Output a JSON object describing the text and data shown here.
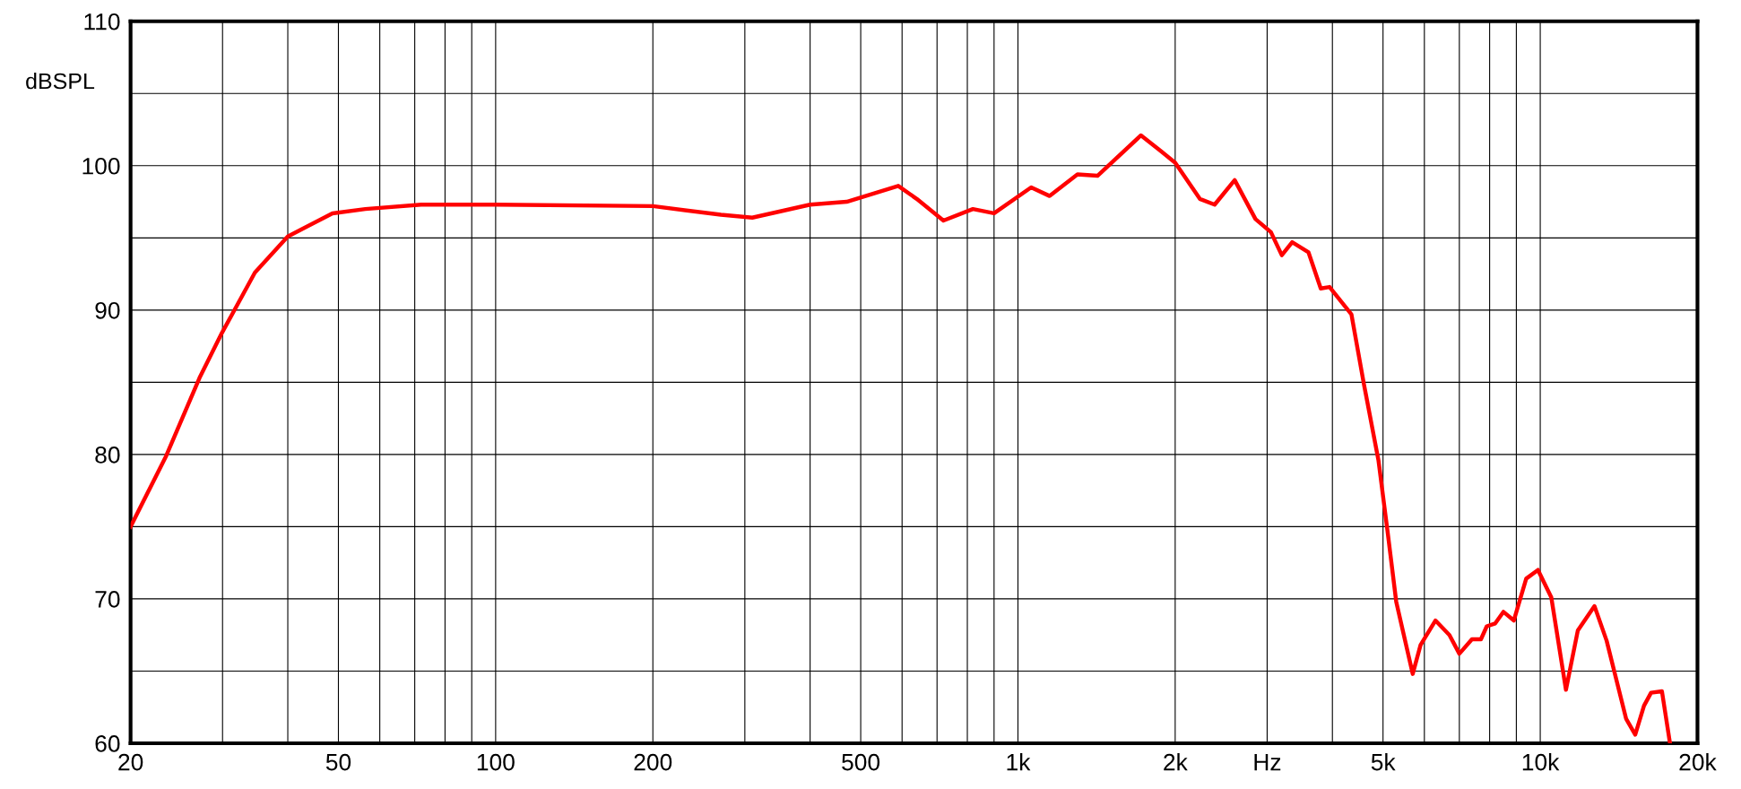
{
  "chart_data": {
    "type": "line",
    "ylabel": "dBSPL",
    "log": "x",
    "grid": true,
    "marker": "none",
    "line_style": "solid",
    "x": [
      20,
      23.4,
      27.1,
      29.9,
      34.6,
      40,
      48.7,
      56.3,
      72,
      100,
      200,
      270,
      310,
      400,
      470,
      590,
      640,
      720,
      820,
      900,
      1060,
      1150,
      1300,
      1420,
      1720,
      1880,
      2000,
      2230,
      2380,
      2600,
      2850,
      3050,
      3200,
      3350,
      3600,
      3800,
      3950,
      4350,
      4600,
      4900,
      5100,
      5300,
      5700,
      5900,
      6300,
      6700,
      7000,
      7400,
      7700,
      7900,
      8200,
      8500,
      8900,
      9400,
      9900,
      10500,
      11200,
      11800,
      12700,
      13400,
      14600,
      15200,
      15800,
      16300,
      17100,
      17700
    ],
    "series": [
      {
        "color": "#ff0000",
        "values": [
          75.0,
          79.9,
          85.3,
          88.4,
          92.6,
          95.1,
          96.7,
          97.0,
          97.3,
          97.3,
          97.2,
          96.6,
          96.4,
          97.3,
          97.5,
          98.6,
          97.7,
          96.2,
          97.0,
          96.7,
          98.5,
          97.9,
          99.4,
          99.3,
          102.1,
          101.0,
          100.2,
          97.7,
          97.3,
          99.0,
          96.3,
          95.4,
          93.8,
          94.7,
          94.0,
          91.5,
          91.6,
          89.7,
          84.8,
          79.6,
          74.7,
          69.8,
          64.8,
          66.8,
          68.5,
          67.5,
          66.2,
          67.2,
          67.2,
          68.1,
          68.3,
          69.1,
          68.5,
          71.4,
          72.0,
          70.1,
          63.7,
          67.8,
          69.5,
          67.1,
          61.7,
          60.6,
          62.6,
          63.5,
          63.6,
          60.1
        ]
      }
    ],
    "xlim": [
      20,
      20000
    ],
    "xticks": [
      20,
      {
        "value": 30,
        "label": null
      },
      {
        "value": 40,
        "label": null
      },
      50,
      {
        "value": 60,
        "label": null
      },
      {
        "value": 70,
        "label": null
      },
      {
        "value": 80,
        "label": null
      },
      {
        "value": 90,
        "label": null
      },
      100,
      200,
      {
        "value": 300,
        "label": null
      },
      {
        "value": 400,
        "label": null
      },
      500,
      {
        "value": 600,
        "label": null
      },
      {
        "value": 700,
        "label": null
      },
      {
        "value": 800,
        "label": null
      },
      {
        "value": 900,
        "label": null
      },
      {
        "value": 1000,
        "label": "1k"
      },
      {
        "value": 2000,
        "label": "2k"
      },
      {
        "value": 3000,
        "label": "Hz"
      },
      {
        "value": 4000,
        "label": null
      },
      {
        "value": 5000,
        "label": "5k"
      },
      {
        "value": 6000,
        "label": null
      },
      {
        "value": 7000,
        "label": null
      },
      {
        "value": 8000,
        "label": null
      },
      {
        "value": 9000,
        "label": null
      },
      {
        "value": 10000,
        "label": "10k"
      },
      {
        "value": 20000,
        "label": "20k"
      }
    ],
    "ylim": [
      60,
      110
    ],
    "yticks": [
      60,
      {
        "value": 65,
        "label": null
      },
      70,
      {
        "value": 75,
        "label": null
      },
      80,
      {
        "value": 85,
        "label": null
      },
      90,
      {
        "value": 95,
        "label": null
      },
      100,
      {
        "value": 105,
        "label": null
      },
      110
    ]
  }
}
